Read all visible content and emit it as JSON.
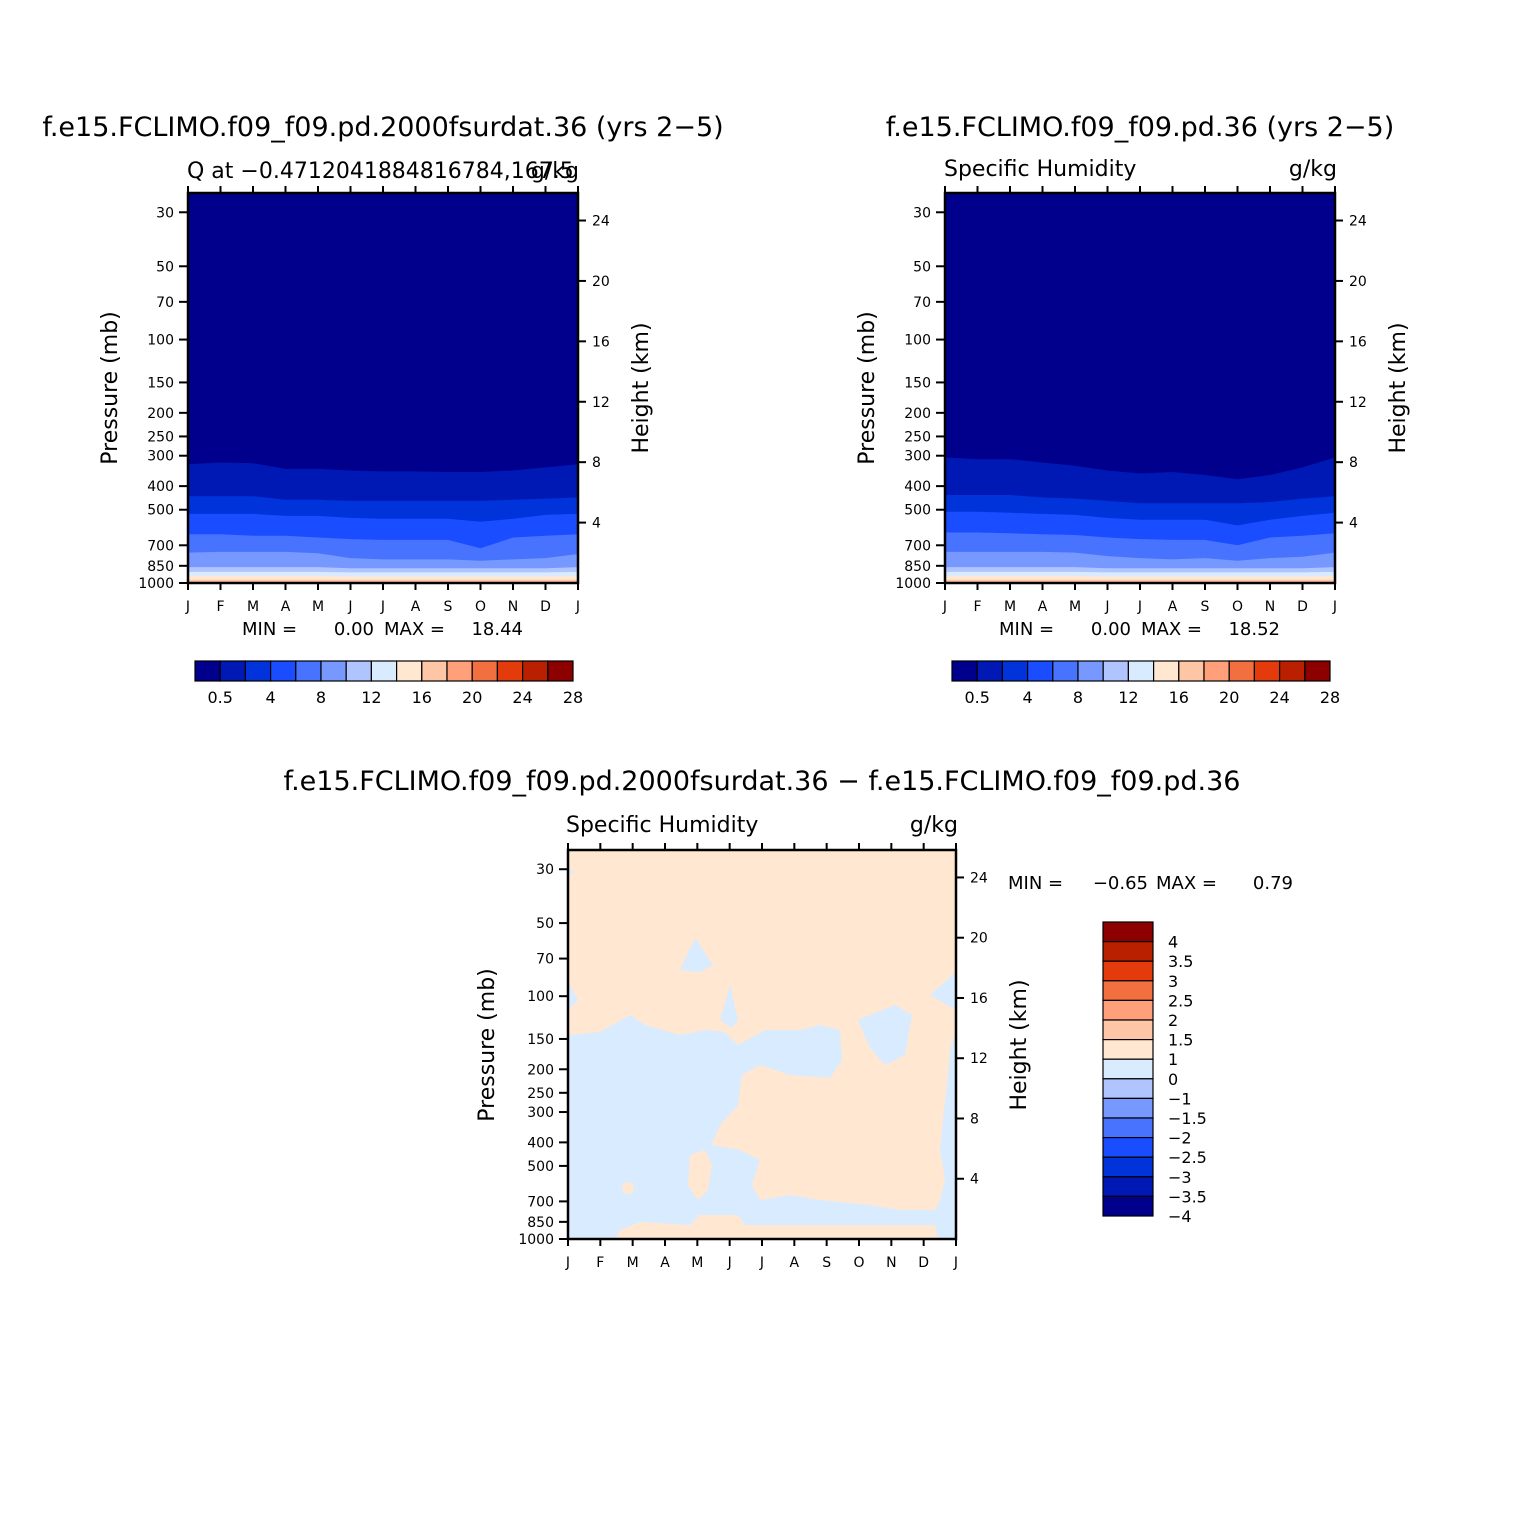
{
  "panels": [
    {
      "id": "top-left",
      "title": "f.e15.FCLIMO.f09_f09.pd.2000fsurdat.36 (yrs 2−5)",
      "subtitle_left": "Q at −0.4712041884816784,167.5",
      "subtitle_right": "g/kg",
      "ylabel": "Pressure (mb)",
      "ylabel_right": "Height (km)",
      "stats": {
        "min_label": "MIN =",
        "min": "0.00",
        "max_label": "MAX =",
        "max": "18.44"
      }
    },
    {
      "id": "top-right",
      "title": "f.e15.FCLIMO.f09_f09.pd.36 (yrs 2−5)",
      "subtitle_left": "Specific Humidity",
      "subtitle_right": "g/kg",
      "ylabel": "Pressure (mb)",
      "ylabel_right": "Height (km)",
      "stats": {
        "min_label": "MIN =",
        "min": "0.00",
        "max_label": "MAX =",
        "max": "18.52"
      }
    },
    {
      "id": "bottom",
      "title": "f.e15.FCLIMO.f09_f09.pd.2000fsurdat.36 − f.e15.FCLIMO.f09_f09.pd.36",
      "subtitle_left": "Specific Humidity",
      "subtitle_right": "g/kg",
      "ylabel": "Pressure (mb)",
      "ylabel_right": "Height (km)",
      "stats": {
        "min_label": "MIN =",
        "min": "−0.65",
        "max_label": "MAX =",
        "max": "0.79"
      }
    }
  ],
  "chart_data": [
    {
      "type": "heatmap",
      "panel": "top-left",
      "x": [
        "J",
        "F",
        "M",
        "A",
        "M",
        "J",
        "J",
        "A",
        "S",
        "O",
        "N",
        "D",
        "J"
      ],
      "y_pressure_ticks": [
        30,
        50,
        70,
        100,
        150,
        200,
        250,
        300,
        400,
        500,
        700,
        850,
        1000
      ],
      "y_height_ticks": [
        4,
        8,
        12,
        16,
        20,
        24
      ],
      "ylim": [
        1000,
        25
      ],
      "log_y": true,
      "contour_boundaries_mb": {
        "0.5": [
          325,
          320,
          322,
          340,
          340,
          345,
          348,
          348,
          350,
          350,
          345,
          335,
          325
        ],
        "2": [
          440,
          440,
          440,
          455,
          455,
          460,
          460,
          460,
          460,
          460,
          455,
          450,
          445
        ],
        "4": [
          520,
          520,
          520,
          530,
          530,
          540,
          545,
          545,
          545,
          560,
          545,
          525,
          520
        ],
        "6": [
          630,
          630,
          640,
          640,
          650,
          660,
          665,
          665,
          665,
          720,
          650,
          640,
          630
        ],
        "8": [
          750,
          745,
          745,
          745,
          755,
          790,
          800,
          800,
          800,
          810,
          800,
          790,
          760
        ],
        "10": [
          860,
          860,
          860,
          860,
          860,
          870,
          870,
          870,
          870,
          870,
          870,
          870,
          860
        ],
        "12": [
          900,
          900,
          900,
          900,
          900,
          905,
          905,
          905,
          905,
          905,
          905,
          905,
          900
        ],
        "14": [
          935,
          935,
          935,
          935,
          935,
          940,
          940,
          940,
          940,
          940,
          940,
          940,
          935
        ],
        "16": [
          970,
          970,
          970,
          970,
          970,
          970,
          970,
          970,
          970,
          970,
          970,
          970,
          970
        ]
      },
      "colorbar": {
        "levels": [
          0.5,
          2,
          4,
          6,
          8,
          10,
          12,
          14,
          16,
          18,
          20,
          22,
          24,
          26,
          28
        ],
        "labels": [
          "0.5",
          "4",
          "8",
          "12",
          "16",
          "20",
          "24",
          "28"
        ],
        "colors": [
          "#00008c",
          "#0019b4",
          "#0033d9",
          "#1a4dff",
          "#4773ff",
          "#7799ff",
          "#b0c4ff",
          "#d9ebff",
          "#ffe7d1",
          "#ffc6a6",
          "#ffa07a",
          "#f27040",
          "#e33b0b",
          "#b82000",
          "#8c0000"
        ]
      }
    },
    {
      "type": "heatmap",
      "panel": "top-right",
      "x": [
        "J",
        "F",
        "M",
        "A",
        "M",
        "J",
        "J",
        "A",
        "S",
        "O",
        "N",
        "D",
        "J"
      ],
      "y_pressure_ticks": [
        30,
        50,
        70,
        100,
        150,
        200,
        250,
        300,
        400,
        500,
        700,
        850,
        1000
      ],
      "y_height_ticks": [
        4,
        8,
        12,
        16,
        20,
        24
      ],
      "ylim": [
        1000,
        25
      ],
      "log_y": true,
      "contour_boundaries_mb": {
        "0.5": [
          305,
          310,
          310,
          320,
          330,
          345,
          355,
          350,
          360,
          375,
          360,
          335,
          305
        ],
        "2": [
          435,
          435,
          435,
          445,
          450,
          460,
          470,
          470,
          470,
          470,
          465,
          450,
          440
        ],
        "4": [
          510,
          510,
          515,
          520,
          525,
          540,
          550,
          550,
          550,
          580,
          550,
          530,
          515
        ],
        "6": [
          620,
          620,
          625,
          630,
          635,
          650,
          660,
          665,
          665,
          700,
          650,
          640,
          625
        ],
        "8": [
          745,
          745,
          745,
          745,
          750,
          775,
          790,
          800,
          790,
          810,
          790,
          780,
          750
        ],
        "10": [
          860,
          860,
          860,
          860,
          860,
          870,
          870,
          870,
          870,
          870,
          870,
          870,
          860
        ],
        "12": [
          900,
          900,
          900,
          900,
          900,
          905,
          905,
          905,
          905,
          905,
          905,
          905,
          900
        ],
        "14": [
          935,
          935,
          935,
          935,
          935,
          940,
          940,
          940,
          940,
          940,
          940,
          940,
          935
        ],
        "16": [
          970,
          970,
          970,
          970,
          970,
          970,
          970,
          970,
          970,
          970,
          970,
          970,
          970
        ]
      },
      "colorbar": {
        "levels": [
          0.5,
          2,
          4,
          6,
          8,
          10,
          12,
          14,
          16,
          18,
          20,
          22,
          24,
          26,
          28
        ],
        "labels": [
          "0.5",
          "4",
          "8",
          "12",
          "16",
          "20",
          "24",
          "28"
        ],
        "colors": [
          "#00008c",
          "#0019b4",
          "#0033d9",
          "#1a4dff",
          "#4773ff",
          "#7799ff",
          "#b0c4ff",
          "#d9ebff",
          "#ffe7d1",
          "#ffc6a6",
          "#ffa07a",
          "#f27040",
          "#e33b0b",
          "#b82000",
          "#8c0000"
        ]
      }
    },
    {
      "type": "heatmap",
      "panel": "bottom",
      "x": [
        "J",
        "F",
        "M",
        "A",
        "M",
        "J",
        "J",
        "A",
        "S",
        "O",
        "N",
        "D",
        "J"
      ],
      "y_pressure_ticks": [
        30,
        50,
        70,
        100,
        150,
        200,
        250,
        300,
        400,
        500,
        700,
        850,
        1000
      ],
      "y_height_ticks": [
        4,
        8,
        12,
        16,
        20,
        24
      ],
      "ylim": [
        1000,
        25
      ],
      "log_y": true,
      "background_level": "0 to 1",
      "colorbar": {
        "orientation": "vertical",
        "labels": [
          "4",
          "3.5",
          "3",
          "2.5",
          "2",
          "1.5",
          "1",
          "0",
          "−1",
          "−1.5",
          "−2",
          "−2.5",
          "−3",
          "−3.5",
          "−4"
        ],
        "colors": [
          "#8c0000",
          "#b82000",
          "#e33b0b",
          "#f27040",
          "#ffa07a",
          "#ffc6a6",
          "#ffe7d1",
          "#d9ebff",
          "#b0c4ff",
          "#7799ff",
          "#4773ff",
          "#1a4dff",
          "#0033d9",
          "#0019b4",
          "#00008c"
        ]
      }
    }
  ]
}
